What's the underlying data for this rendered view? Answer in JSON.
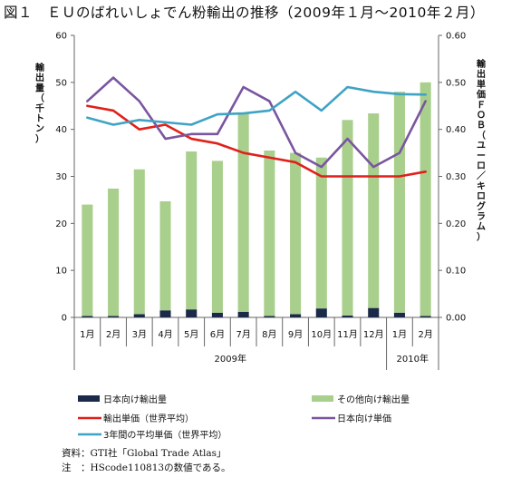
{
  "figure_title": "図１　ＥＵのばれいしょでん粉輸出の推移（2009年１月～2010年２月）",
  "notes": {
    "source": "資料：GTI社「Global Trade Atlas」",
    "note": "注　：HScode110813の数値である。"
  },
  "colors": {
    "japan_bar": "#1b2a48",
    "other_bar": "#a9cf8c",
    "export_price": "#e0201b",
    "japan_price": "#7a55a0",
    "avg_price": "#3fa3c4"
  },
  "chart_data": {
    "type": "bar",
    "categories": [
      "1月",
      "2月",
      "3月",
      "4月",
      "5月",
      "6月",
      "7月",
      "8月",
      "9月",
      "10月",
      "11月",
      "12月",
      "1月",
      "2月"
    ],
    "year_groups": [
      {
        "label": "2009年",
        "months": 12
      },
      {
        "label": "2010年",
        "months": 2
      }
    ],
    "y_left": {
      "label": "輸出量（千トン）",
      "range": [
        0,
        60
      ],
      "ticks": [
        "0",
        "10",
        "20",
        "30",
        "40",
        "50",
        "60"
      ]
    },
    "y_right": {
      "label": "輸出単価ＦＯＢ（ユーロ／キログラム）",
      "range": [
        0,
        0.6
      ],
      "ticks": [
        "0.00",
        "0.10",
        "0.20",
        "0.30",
        "0.40",
        "0.50",
        "0.60"
      ]
    },
    "bar_series": [
      {
        "name": "日本向け輸出量",
        "values": [
          0.3,
          0.3,
          0.7,
          1.5,
          1.7,
          1.0,
          1.2,
          0.3,
          0.7,
          1.9,
          0.4,
          2.0,
          1.0,
          0.3
        ]
      },
      {
        "name": "その他向け輸出量",
        "values": [
          23.7,
          27.1,
          30.8,
          23.2,
          33.6,
          32.3,
          42.3,
          35.2,
          34.3,
          32.1,
          41.6,
          41.4,
          47.0,
          49.7
        ]
      }
    ],
    "line_series": [
      {
        "name": "輸出単価（世界平均）",
        "values": [
          0.45,
          0.44,
          0.4,
          0.41,
          0.38,
          0.37,
          0.35,
          0.34,
          0.33,
          0.3,
          0.3,
          0.3,
          0.3,
          0.31
        ]
      },
      {
        "name": "日本向け単価",
        "values": [
          0.46,
          0.51,
          0.46,
          0.38,
          0.39,
          0.39,
          0.49,
          0.46,
          0.35,
          0.32,
          0.38,
          0.32,
          0.35,
          0.46
        ]
      },
      {
        "name": "3年間の平均単価（世界平均）",
        "values": [
          0.425,
          0.41,
          0.42,
          0.415,
          0.41,
          0.432,
          0.434,
          0.44,
          0.48,
          0.44,
          0.49,
          0.48,
          0.475,
          0.474
        ]
      }
    ],
    "legend_placement": "bottom"
  }
}
